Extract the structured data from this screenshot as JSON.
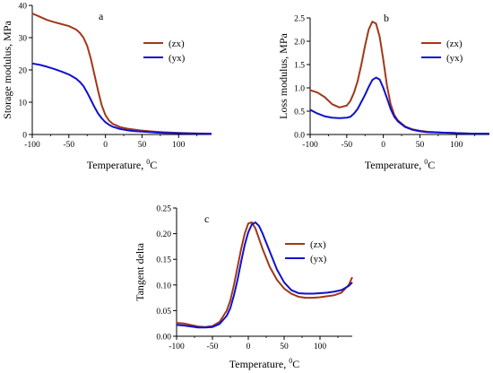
{
  "chart_data": [
    {
      "panel": "a",
      "type": "line",
      "xlabel": "Temperature, ",
      "xlabel_sup": "0",
      "xlabel_unit": "C",
      "ylabel": "Storage modulus, MPa",
      "xlim": [
        -100,
        145
      ],
      "ylim": [
        0,
        40
      ],
      "xticks": [
        "-100",
        "-50",
        "0",
        "50",
        "100"
      ],
      "xtick_values": [
        -100,
        -50,
        0,
        50,
        100
      ],
      "yticks": [
        "0",
        "10",
        "20",
        "30",
        "40"
      ],
      "ytick_values": [
        0,
        10,
        20,
        30,
        40
      ],
      "legend_position": "top-right",
      "series": [
        {
          "name": "(zx)",
          "color": "#a0381a",
          "x": [
            -100,
            -90,
            -80,
            -70,
            -60,
            -50,
            -40,
            -35,
            -30,
            -25,
            -20,
            -15,
            -10,
            -5,
            0,
            5,
            10,
            20,
            30,
            40,
            50,
            60,
            70,
            80,
            90,
            100,
            110,
            120,
            130,
            145
          ],
          "y": [
            37.5,
            36.5,
            35.5,
            34.8,
            34.2,
            33.6,
            32.5,
            31.5,
            30,
            27.5,
            23.5,
            18.5,
            13.5,
            9,
            6,
            4.3,
            3.3,
            2.3,
            1.8,
            1.5,
            1.2,
            1.0,
            0.85,
            0.7,
            0.6,
            0.5,
            0.4,
            0.35,
            0.3,
            0.25
          ]
        },
        {
          "name": "(yx)",
          "color": "#1010d0",
          "x": [
            -100,
            -90,
            -80,
            -70,
            -60,
            -50,
            -40,
            -35,
            -30,
            -25,
            -20,
            -15,
            -10,
            -5,
            0,
            5,
            10,
            20,
            30,
            40,
            50,
            60,
            70,
            80,
            90,
            100,
            110,
            120,
            130,
            145
          ],
          "y": [
            22,
            21.6,
            21,
            20.3,
            19.5,
            18.6,
            17.3,
            16.3,
            15,
            13,
            10.8,
            8.5,
            6.5,
            5,
            3.8,
            3,
            2.4,
            1.7,
            1.3,
            1.05,
            0.9,
            0.75,
            0.6,
            0.5,
            0.45,
            0.4,
            0.35,
            0.3,
            0.25,
            0.2
          ]
        }
      ]
    },
    {
      "panel": "b",
      "type": "line",
      "xlabel": "Temperature, ",
      "xlabel_sup": "0",
      "xlabel_unit": "C",
      "ylabel": "Loss modulus, MPa",
      "xlim": [
        -100,
        145
      ],
      "ylim": [
        0,
        2.5
      ],
      "xticks": [
        "-100",
        "-50",
        "0",
        "50",
        "100"
      ],
      "xtick_values": [
        -100,
        -50,
        0,
        50,
        100
      ],
      "yticks": [
        "0.0",
        "0.5",
        "1.0",
        "1.5",
        "2.0",
        "2.5"
      ],
      "ytick_values": [
        0,
        0.5,
        1.0,
        1.5,
        2.0,
        2.5
      ],
      "legend_position": "top-right",
      "series": [
        {
          "name": "(zx)",
          "color": "#a0381a",
          "x": [
            -100,
            -90,
            -80,
            -70,
            -60,
            -50,
            -45,
            -40,
            -35,
            -30,
            -25,
            -20,
            -15,
            -10,
            -5,
            0,
            5,
            10,
            15,
            20,
            30,
            40,
            50,
            60,
            70,
            80,
            100,
            120,
            145
          ],
          "y": [
            0.95,
            0.9,
            0.8,
            0.65,
            0.58,
            0.62,
            0.72,
            0.9,
            1.15,
            1.5,
            1.9,
            2.25,
            2.42,
            2.38,
            2.1,
            1.6,
            1.05,
            0.65,
            0.42,
            0.3,
            0.17,
            0.11,
            0.08,
            0.06,
            0.05,
            0.04,
            0.03,
            0.02,
            0.02
          ]
        },
        {
          "name": "(yx)",
          "color": "#1010d0",
          "x": [
            -100,
            -90,
            -80,
            -70,
            -60,
            -50,
            -45,
            -40,
            -35,
            -30,
            -25,
            -20,
            -15,
            -10,
            -5,
            0,
            5,
            10,
            15,
            20,
            30,
            40,
            50,
            60,
            70,
            80,
            100,
            120,
            145
          ],
          "y": [
            0.53,
            0.45,
            0.39,
            0.36,
            0.35,
            0.36,
            0.38,
            0.45,
            0.55,
            0.7,
            0.85,
            1.02,
            1.17,
            1.22,
            1.18,
            1.0,
            0.78,
            0.55,
            0.38,
            0.28,
            0.16,
            0.1,
            0.07,
            0.05,
            0.045,
            0.04,
            0.03,
            0.02,
            0.02
          ]
        }
      ]
    },
    {
      "panel": "c",
      "type": "line",
      "xlabel": "Temperature, ",
      "xlabel_sup": "0",
      "xlabel_unit": "C",
      "ylabel": "Tangent delta",
      "xlim": [
        -100,
        145
      ],
      "ylim": [
        0,
        0.25
      ],
      "xticks": [
        "-100",
        "-50",
        "0",
        "50",
        "100"
      ],
      "xtick_values": [
        -100,
        -50,
        0,
        50,
        100
      ],
      "yticks": [
        "0.00",
        "0.05",
        "0.10",
        "0.15",
        "0.20",
        "0.25"
      ],
      "ytick_values": [
        0,
        0.05,
        0.1,
        0.15,
        0.2,
        0.25
      ],
      "legend_position": "top-right",
      "series": [
        {
          "name": "(zx)",
          "color": "#a0381a",
          "x": [
            -100,
            -90,
            -80,
            -70,
            -60,
            -50,
            -40,
            -30,
            -25,
            -20,
            -15,
            -10,
            -5,
            0,
            5,
            10,
            15,
            20,
            30,
            40,
            50,
            60,
            70,
            80,
            90,
            100,
            110,
            120,
            130,
            140,
            145
          ],
          "y": [
            0.026,
            0.025,
            0.022,
            0.019,
            0.018,
            0.02,
            0.028,
            0.05,
            0.07,
            0.1,
            0.135,
            0.17,
            0.2,
            0.22,
            0.222,
            0.21,
            0.19,
            0.17,
            0.135,
            0.11,
            0.093,
            0.083,
            0.077,
            0.075,
            0.075,
            0.076,
            0.078,
            0.08,
            0.085,
            0.1,
            0.115
          ]
        },
        {
          "name": "(yx)",
          "color": "#1010d0",
          "x": [
            -100,
            -90,
            -80,
            -70,
            -60,
            -50,
            -40,
            -30,
            -25,
            -20,
            -15,
            -10,
            -5,
            0,
            5,
            10,
            15,
            20,
            30,
            40,
            50,
            60,
            70,
            80,
            90,
            100,
            110,
            120,
            130,
            140,
            145
          ],
          "y": [
            0.022,
            0.021,
            0.019,
            0.017,
            0.017,
            0.018,
            0.024,
            0.04,
            0.055,
            0.08,
            0.11,
            0.145,
            0.178,
            0.203,
            0.218,
            0.222,
            0.215,
            0.2,
            0.165,
            0.13,
            0.105,
            0.09,
            0.084,
            0.083,
            0.083,
            0.084,
            0.085,
            0.087,
            0.09,
            0.098,
            0.105
          ]
        }
      ]
    }
  ]
}
